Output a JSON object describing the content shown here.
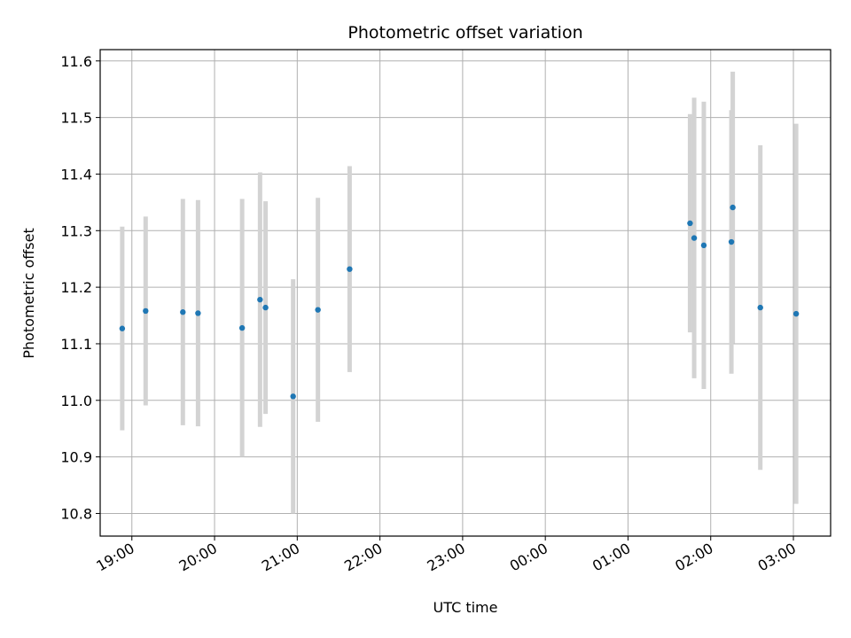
{
  "chart_data": {
    "type": "scatter",
    "title": "Photometric offset variation",
    "xlabel": "UTC time",
    "ylabel": "Photometric offset",
    "x_axis": "time",
    "xlim": [
      "18:37",
      "03:27"
    ],
    "ylim": [
      10.76,
      11.62
    ],
    "x_ticks": [
      "19:00",
      "20:00",
      "21:00",
      "22:00",
      "23:00",
      "00:00",
      "01:00",
      "02:00",
      "03:00"
    ],
    "y_ticks": [
      "10.8",
      "10.9",
      "11.0",
      "11.1",
      "11.2",
      "11.3",
      "11.4",
      "11.5",
      "11.6"
    ],
    "grid": true,
    "point_color": "#1f77b4",
    "errorbar_color": "#d3d3d3",
    "points": [
      {
        "t": "18:53",
        "y": 11.127,
        "err": 0.18
      },
      {
        "t": "19:10",
        "y": 11.158,
        "err": 0.167
      },
      {
        "t": "19:37",
        "y": 11.156,
        "err": 0.2
      },
      {
        "t": "19:48",
        "y": 11.154,
        "err": 0.2
      },
      {
        "t": "20:20",
        "y": 11.128,
        "err": 0.228
      },
      {
        "t": "20:33",
        "y": 11.178,
        "err": 0.225
      },
      {
        "t": "20:37",
        "y": 11.164,
        "err": 0.188
      },
      {
        "t": "20:57",
        "y": 11.007,
        "err": 0.207
      },
      {
        "t": "21:15",
        "y": 11.16,
        "err": 0.198
      },
      {
        "t": "21:38",
        "y": 11.232,
        "err": 0.182
      },
      {
        "t": "01:45",
        "y": 11.313,
        "err": 0.193
      },
      {
        "t": "01:48",
        "y": 11.287,
        "err": 0.248
      },
      {
        "t": "01:55",
        "y": 11.274,
        "err": 0.254
      },
      {
        "t": "02:15",
        "y": 11.28,
        "err": 0.233
      },
      {
        "t": "02:16",
        "y": 11.341,
        "err": 0.24
      },
      {
        "t": "02:36",
        "y": 11.164,
        "err": 0.287
      },
      {
        "t": "03:02",
        "y": 11.153,
        "err": 0.336
      }
    ]
  }
}
